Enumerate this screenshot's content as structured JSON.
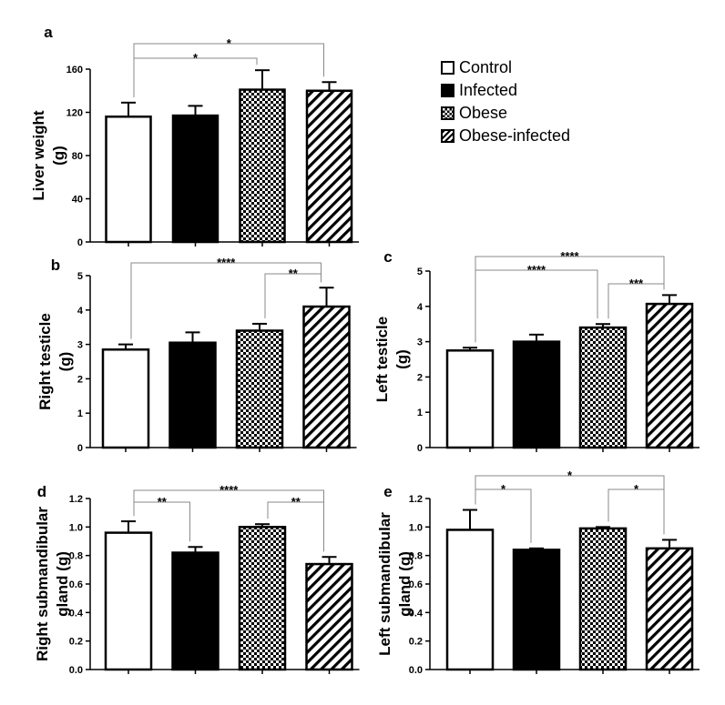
{
  "legend": [
    {
      "label": "Control",
      "fill": "white"
    },
    {
      "label": "Infected",
      "fill": "black"
    },
    {
      "label": "Obese",
      "fill": "checker"
    },
    {
      "label": "Obese-infected",
      "fill": "hatch"
    }
  ],
  "colors": {
    "bar_stroke": "#000000",
    "bracket": "#888888",
    "axis": "#000000"
  },
  "chart_data": [
    {
      "panel": "a",
      "type": "bar",
      "ylabel": [
        "Liver weight",
        "(g)"
      ],
      "ylim": [
        0,
        160
      ],
      "yticks": [
        "0",
        "40",
        "80",
        "120",
        "160"
      ],
      "categories": [
        "Control",
        "Infected",
        "Obese",
        "Obese-infected"
      ],
      "values": [
        116,
        117,
        141,
        140
      ],
      "errors": [
        13,
        9,
        18,
        8
      ],
      "significance": [
        {
          "from": 0,
          "to": 2,
          "label": "*"
        },
        {
          "from": 0,
          "to": 3,
          "label": "*"
        }
      ]
    },
    {
      "panel": "b",
      "type": "bar",
      "ylabel": [
        "Right testicle",
        "(g)"
      ],
      "ylim": [
        0,
        5
      ],
      "yticks": [
        "0",
        "1",
        "2",
        "3",
        "4",
        "5"
      ],
      "categories": [
        "Control",
        "Infected",
        "Obese",
        "Obese-infected"
      ],
      "values": [
        2.85,
        3.05,
        3.4,
        4.1
      ],
      "errors": [
        0.15,
        0.3,
        0.2,
        0.55
      ],
      "significance": [
        {
          "from": 2,
          "to": 3,
          "label": "**"
        },
        {
          "from": 0,
          "to": 3,
          "label": "****"
        }
      ]
    },
    {
      "panel": "c",
      "type": "bar",
      "ylabel": [
        "Left testicle",
        "(g)"
      ],
      "ylim": [
        0,
        5
      ],
      "yticks": [
        "0",
        "1",
        "2",
        "3",
        "4",
        "5"
      ],
      "categories": [
        "Control",
        "Infected",
        "Obese",
        "Obese-infected"
      ],
      "values": [
        2.75,
        3.0,
        3.4,
        4.07
      ],
      "errors": [
        0.08,
        0.2,
        0.1,
        0.25
      ],
      "significance": [
        {
          "from": 2,
          "to": 3,
          "label": "***"
        },
        {
          "from": 0,
          "to": 2,
          "label": "****"
        },
        {
          "from": 0,
          "to": 3,
          "label": "****"
        }
      ]
    },
    {
      "panel": "d",
      "type": "bar",
      "ylabel": [
        "Right submandibular",
        "gland (g)"
      ],
      "ylim": [
        0,
        1.2
      ],
      "yticks": [
        "0.0",
        "0.2",
        "0.4",
        "0.6",
        "0.8",
        "1.0",
        "1.2"
      ],
      "categories": [
        "Control",
        "Infected",
        "Obese",
        "Obese-infected"
      ],
      "values": [
        0.96,
        0.82,
        1.0,
        0.74
      ],
      "errors": [
        0.08,
        0.04,
        0.02,
        0.05
      ],
      "significance": [
        {
          "from": 0,
          "to": 1,
          "label": "**"
        },
        {
          "from": 2,
          "to": 3,
          "label": "**"
        },
        {
          "from": 0,
          "to": 3,
          "label": "****"
        }
      ]
    },
    {
      "panel": "e",
      "type": "bar",
      "ylabel": [
        "Left submandibular",
        "gland (g)"
      ],
      "ylim": [
        0,
        1.2
      ],
      "yticks": [
        "0.0",
        "0.2",
        "0.4",
        "0.6",
        "0.8",
        "1.0",
        "1.2"
      ],
      "categories": [
        "Control",
        "Infected",
        "Obese",
        "Obese-infected"
      ],
      "values": [
        0.98,
        0.84,
        0.99,
        0.85
      ],
      "errors": [
        0.14,
        0.01,
        0.01,
        0.06
      ],
      "significance": [
        {
          "from": 0,
          "to": 1,
          "label": "*"
        },
        {
          "from": 2,
          "to": 3,
          "label": "*"
        },
        {
          "from": 0,
          "to": 3,
          "label": "*"
        }
      ]
    }
  ]
}
